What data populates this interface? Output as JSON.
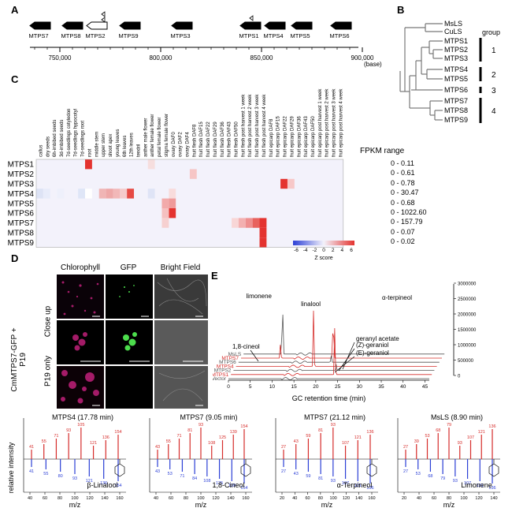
{
  "panels": {
    "a": "A",
    "b": "B",
    "c": "C",
    "d": "D",
    "e": "E"
  },
  "genome": {
    "genes": [
      {
        "name": "MTPS7",
        "dir": "L"
      },
      {
        "name": "MTPS8",
        "dir": "L"
      },
      {
        "name": "MTPS2",
        "dir": "L"
      },
      {
        "name": "MTPS9",
        "dir": "L"
      },
      {
        "name": "MTPS3",
        "dir": "L"
      },
      {
        "name": "MTPS1",
        "dir": "L"
      },
      {
        "name": "MTPS4",
        "dir": "L"
      },
      {
        "name": "MTPS5",
        "dir": "L"
      },
      {
        "name": "MTPS6",
        "dir": "L"
      }
    ],
    "ticks": [
      "750,000",
      "800,000",
      "850,000",
      "900,000"
    ],
    "unit": "(base)"
  },
  "tree": {
    "leaves": [
      "MsLS",
      "CuLS",
      "MTPS1",
      "MTPS2",
      "MTPS3",
      "MTPS4",
      "MTPS5",
      "MTPS6",
      "MTPS7",
      "MTPS8",
      "MTPS9"
    ],
    "group_title": "group",
    "groups": [
      "1",
      "2",
      "3",
      "4"
    ]
  },
  "heatmap": {
    "columns": [
      "callus",
      "dry seeds",
      "6h-imbibed seeds",
      "3d-imbibed seeds",
      "7d-seedlings cotyledon",
      "7d-seedlings hypocotyl",
      "7d-seedlings root",
      "root",
      "middle stem",
      "upper stem",
      "shoot apex",
      "young leaves",
      "6th leaves",
      "12th leaves",
      "tendril",
      "anther male flower",
      "anther female flower",
      "petal female flower",
      "stigma female flower",
      "ovary DAF0",
      "ovary DAF2",
      "ovary DAF4",
      "fruit flesh DAF8",
      "fruit flesh DAF15",
      "fruit flesh DAF22",
      "fruit flesh DAF29",
      "fruit flesh DAF36",
      "fruit flesh DAF43",
      "fruit flesh DAF50",
      "fruit flesh post harvest 1 week",
      "fruit flesh post harvest 2 week",
      "fruit flesh post harvest 3 week",
      "fruit flesh post harvest 4 week",
      "fruit epicarp DAF8",
      "fruit epicarp DAF15",
      "fruit epicarp DAF22",
      "fruit epicarp DAF29",
      "fruit epicarp DAF36",
      "fruit epicarp DAF43",
      "fruit epicarp DAF50",
      "fruit epicarp post harvest 1 week",
      "fruit epicarp post harvest 2 week",
      "fruit epicarp post harvest 3 week",
      "fruit epicarp post harvest 4 week"
    ],
    "rows": [
      "MTPS1",
      "MTPS2",
      "MTPS3",
      "MTPS4",
      "MTPS5",
      "MTPS6",
      "MTPS7",
      "MTPS8",
      "MTPS9"
    ],
    "fpkm_title": "FPKM range",
    "fpkm": [
      "0 - 0.11",
      "0 - 0.61",
      "0 - 0.78",
      "0 - 30.47",
      "0 - 0.68",
      "0 - 1022.60",
      "0 - 157.79",
      "0 - 0.07",
      "0 - 0.02"
    ],
    "scale_ticks": [
      "-6",
      "-4",
      "-2",
      "0",
      "2",
      "4",
      "6"
    ],
    "scale_label": "Z score"
  },
  "micro": {
    "cols": [
      "Chlorophyll",
      "GFP",
      "Bright Field"
    ],
    "side_main": "CmMTPS7-GFP + P19",
    "side_close": "Close up",
    "side_p19": "P19 only"
  },
  "gc": {
    "traces": [
      "MsLS",
      "MTPS7",
      "MTPS6",
      "MTPS4",
      "MTPS2",
      "MTPS1",
      "Vector"
    ],
    "red_traces": [
      "MTPS7",
      "MTPS4",
      "MTPS1"
    ],
    "peak_labels": [
      "limonene",
      "linalool",
      "α-terpineol",
      "1,8-cineol",
      "geranyl acetate",
      "(Z)-geraniol",
      "(E)-geraniol"
    ],
    "x_ticks": [
      "0",
      "5",
      "10",
      "15",
      "20",
      "25",
      "30",
      "35",
      "40",
      "45"
    ],
    "y_ticks": [
      "0",
      "500000",
      "1000000",
      "1500000",
      "2000000",
      "2500000",
      "3000000"
    ],
    "x_label": "GC retention time (min)"
  },
  "ms": {
    "y_label": "relative intensity",
    "x_label": "m/z",
    "spectra": [
      {
        "title": "MTPS4 (17.78 min)",
        "compound": "β-Linalool",
        "ticks": [
          "40",
          "60",
          "80",
          "100",
          "120",
          "140",
          "160"
        ],
        "top": [
          "41",
          "55",
          "71",
          "93",
          "105",
          "121",
          "136",
          "154"
        ],
        "bottom": [
          "41",
          "55",
          "80",
          "93",
          "121",
          "136",
          "154"
        ]
      },
      {
        "title": "MTPS7 (9.05 min)",
        "compound": "1,8-Cineol",
        "ticks": [
          "40",
          "60",
          "80",
          "100",
          "120",
          "140",
          "160"
        ],
        "top": [
          "43",
          "55",
          "71",
          "81",
          "93",
          "108",
          "125",
          "139",
          "154"
        ],
        "bottom": [
          "43",
          "53",
          "71",
          "84",
          "108",
          "125",
          "139",
          "154"
        ]
      },
      {
        "title": "MTPS7 (21.12 min)",
        "compound": "α-Terpineol",
        "ticks": [
          "20",
          "40",
          "60",
          "80",
          "100",
          "120",
          "140",
          "160"
        ],
        "top": [
          "27",
          "43",
          "59",
          "81",
          "93",
          "107",
          "121",
          "136"
        ],
        "bottom": [
          "27",
          "43",
          "59",
          "81",
          "93",
          "107",
          "121",
          "136"
        ]
      },
      {
        "title": "MsLS (8.90 min)",
        "compound": "Limonene",
        "ticks": [
          "20",
          "40",
          "60",
          "80",
          "100",
          "120",
          "140"
        ],
        "top": [
          "27",
          "39",
          "53",
          "68",
          "79",
          "93",
          "107",
          "121",
          "136"
        ],
        "bottom": [
          "27",
          "53",
          "68",
          "79",
          "93",
          "107",
          "121",
          "136"
        ]
      }
    ]
  }
}
